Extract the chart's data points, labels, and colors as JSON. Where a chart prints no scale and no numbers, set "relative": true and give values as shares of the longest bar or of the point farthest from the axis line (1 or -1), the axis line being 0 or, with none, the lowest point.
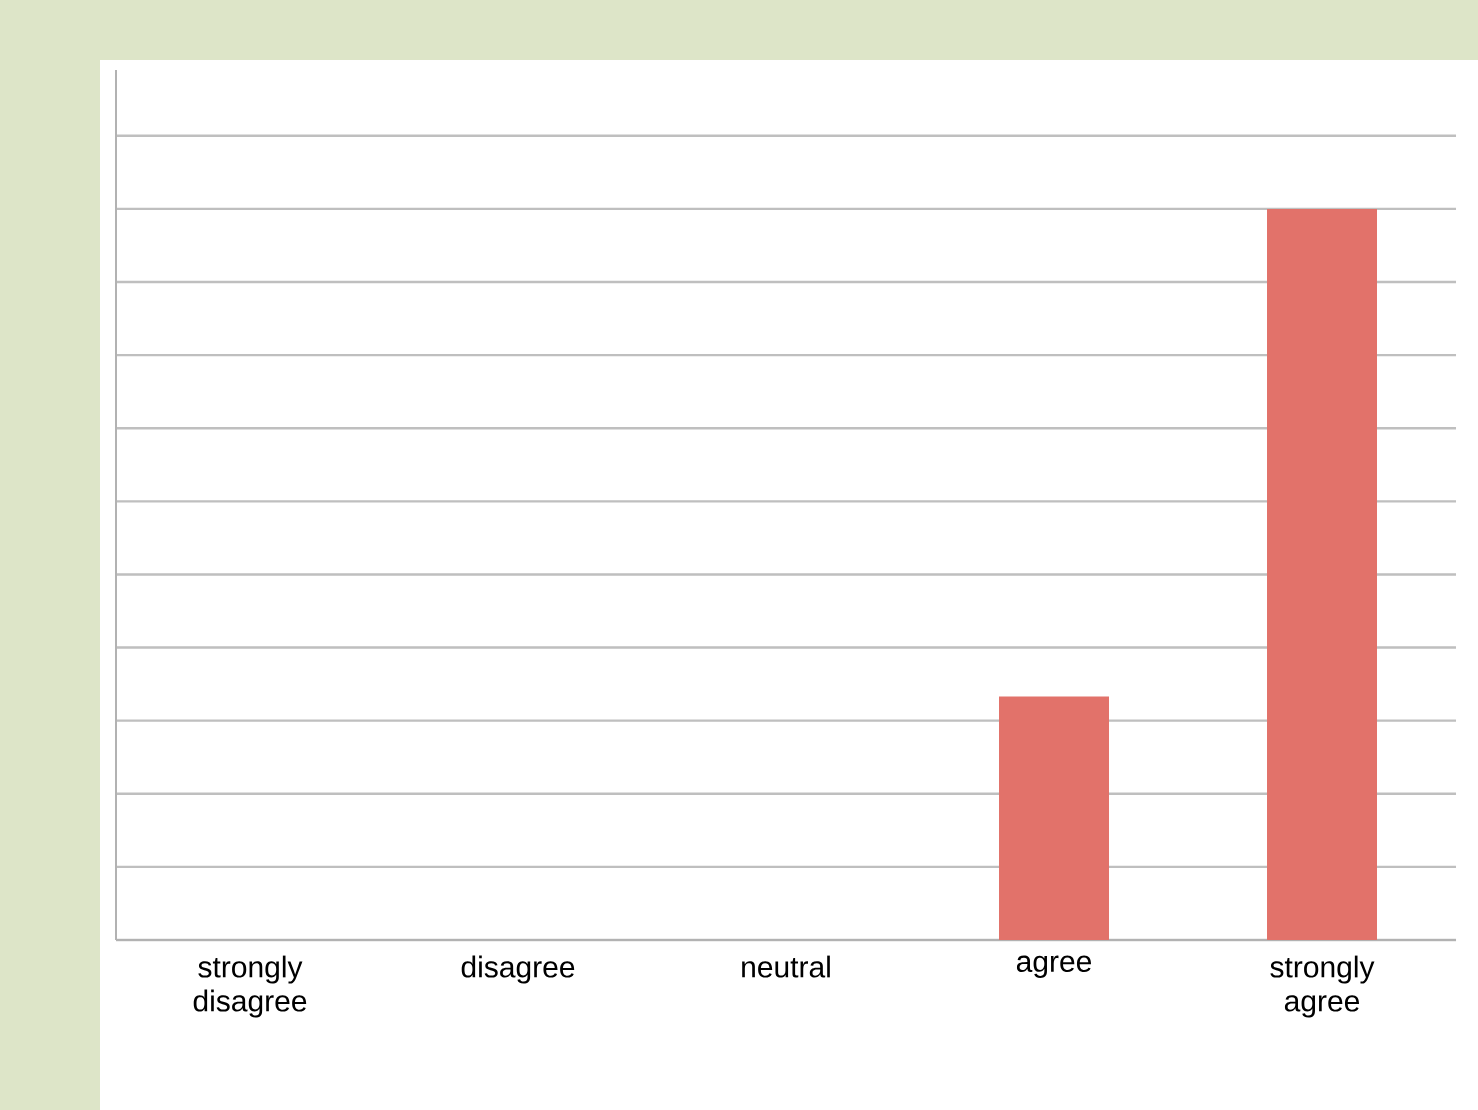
{
  "chart_data": {
    "type": "bar",
    "categories": [
      "strongly disagree",
      "disagree",
      "neutral",
      "agree",
      "strongly agree"
    ],
    "values": [
      0,
      0,
      0,
      0.333,
      1
    ],
    "color": "#e2726a",
    "relative": true,
    "grid": "y"
  }
}
